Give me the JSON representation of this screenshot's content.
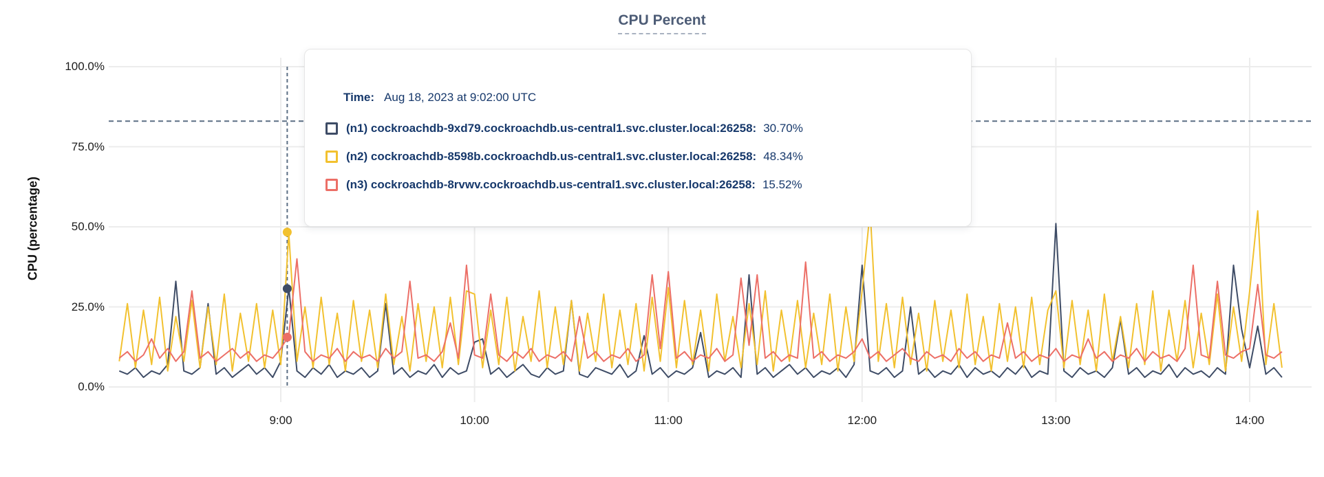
{
  "chart_data": {
    "type": "line",
    "title": "CPU Percent",
    "ylabel": "CPU (percentage)",
    "ylim": [
      0,
      100
    ],
    "grid": true,
    "y_ticks": [
      {
        "pct": 0,
        "label": "0.0%"
      },
      {
        "pct": 25,
        "label": "25.0%"
      },
      {
        "pct": 50,
        "label": "50.0%"
      },
      {
        "pct": 75,
        "label": "75.0%"
      },
      {
        "pct": 100,
        "label": "100.0%"
      }
    ],
    "x_ticks": [
      {
        "minutes": 540,
        "label": "9:00"
      },
      {
        "minutes": 600,
        "label": "10:00"
      },
      {
        "minutes": 660,
        "label": "11:00"
      },
      {
        "minutes": 720,
        "label": "12:00"
      },
      {
        "minutes": 780,
        "label": "13:00"
      },
      {
        "minutes": 840,
        "label": "14:00"
      }
    ],
    "x_start_minutes": 490,
    "sample_interval_minutes": 2.5,
    "series": [
      {
        "name": "(n1) cockroachdb-9xd79.cockroachdb.us-central1.svc.cluster.local:26258",
        "short": "n1",
        "color": "#3e4c66",
        "values": [
          5,
          4,
          6,
          3,
          5,
          4,
          7,
          33,
          5,
          4,
          6,
          26,
          4,
          6,
          3,
          5,
          7,
          4,
          6,
          3,
          8,
          31,
          5,
          3,
          6,
          4,
          7,
          3,
          5,
          4,
          6,
          3,
          5,
          26,
          4,
          6,
          3,
          5,
          4,
          7,
          3,
          6,
          4,
          5,
          14,
          15,
          4,
          6,
          3,
          5,
          7,
          4,
          3,
          6,
          4,
          5,
          27,
          4,
          3,
          6,
          5,
          4,
          7,
          3,
          5,
          16,
          4,
          6,
          3,
          5,
          4,
          6,
          17,
          3,
          5,
          4,
          6,
          3,
          35,
          4,
          6,
          3,
          5,
          7,
          4,
          6,
          3,
          5,
          4,
          6,
          3,
          7,
          38,
          5,
          4,
          6,
          3,
          5,
          25,
          4,
          6,
          3,
          5,
          4,
          7,
          3,
          6,
          4,
          5,
          3,
          6,
          4,
          7,
          3,
          5,
          4,
          51,
          5,
          3,
          6,
          4,
          5,
          3,
          6,
          21,
          4,
          6,
          3,
          5,
          4,
          7,
          3,
          6,
          4,
          5,
          3,
          6,
          4,
          38,
          18,
          6,
          19,
          4,
          6,
          3
        ]
      },
      {
        "name": "(n2) cockroachdb-8598b.cockroachdb.us-central1.svc.cluster.local:26258",
        "short": "n2",
        "color": "#f2c12f",
        "values": [
          8,
          26,
          6,
          24,
          7,
          28,
          5,
          22,
          8,
          27,
          6,
          25,
          7,
          29,
          5,
          23,
          8,
          26,
          6,
          24,
          7,
          48,
          8,
          25,
          6,
          28,
          7,
          23,
          5,
          27,
          8,
          24,
          6,
          29,
          7,
          22,
          5,
          26,
          8,
          25,
          6,
          28,
          7,
          30,
          29,
          6,
          24,
          7,
          28,
          5,
          22,
          8,
          30,
          6,
          25,
          7,
          27,
          5,
          23,
          8,
          29,
          6,
          24,
          7,
          26,
          5,
          28,
          8,
          31,
          6,
          27,
          7,
          24,
          5,
          29,
          8,
          22,
          6,
          26,
          7,
          30,
          5,
          24,
          8,
          27,
          6,
          23,
          7,
          29,
          5,
          25,
          8,
          30,
          55,
          8,
          26,
          6,
          28,
          7,
          23,
          5,
          27,
          8,
          24,
          6,
          29,
          7,
          22,
          5,
          26,
          8,
          25,
          6,
          28,
          7,
          24,
          30,
          6,
          27,
          7,
          24,
          5,
          29,
          8,
          22,
          6,
          26,
          7,
          30,
          5,
          24,
          8,
          27,
          6,
          23,
          7,
          29,
          5,
          25,
          8,
          30,
          55,
          7,
          26,
          6
        ]
      },
      {
        "name": "(n3) cockroachdb-8rvwv.cockroachdb.us-central1.svc.cluster.local:26258",
        "short": "n3",
        "color": "#ec6f67",
        "values": [
          9,
          11,
          8,
          10,
          15,
          9,
          12,
          8,
          11,
          30,
          9,
          11,
          8,
          10,
          12,
          9,
          11,
          8,
          10,
          9,
          12,
          16,
          40,
          11,
          8,
          10,
          9,
          12,
          8,
          11,
          9,
          10,
          8,
          12,
          9,
          11,
          33,
          9,
          10,
          8,
          11,
          20,
          9,
          38,
          10,
          9,
          29,
          10,
          8,
          11,
          9,
          12,
          8,
          10,
          9,
          11,
          8,
          22,
          9,
          11,
          8,
          10,
          9,
          12,
          8,
          10,
          35,
          12,
          36,
          9,
          11,
          8,
          10,
          9,
          12,
          8,
          10,
          34,
          13,
          35,
          9,
          11,
          8,
          10,
          9,
          39,
          9,
          11,
          8,
          10,
          9,
          11,
          15,
          9,
          11,
          8,
          10,
          12,
          9,
          8,
          11,
          9,
          10,
          8,
          12,
          9,
          11,
          8,
          10,
          9,
          20,
          9,
          11,
          8,
          10,
          9,
          12,
          8,
          10,
          9,
          15,
          9,
          11,
          8,
          10,
          9,
          12,
          8,
          11,
          9,
          10,
          8,
          12,
          38,
          10,
          9,
          33,
          10,
          9,
          11,
          12,
          32,
          10,
          9,
          11
        ]
      }
    ],
    "hover": {
      "time_minutes": 542,
      "time_label": "Aug 18, 2023 at 9:02:00 UTC",
      "values": [
        30.7,
        48.34,
        15.52
      ],
      "crosshair_pct": 83,
      "crosshair_color": "#5b6e84"
    }
  },
  "tooltip": {
    "time_label": "Time:",
    "time_value": "Aug 18, 2023 at 9:02:00 UTC",
    "rows": [
      {
        "label": "(n1) cockroachdb-9xd79.cockroachdb.us-central1.svc.cluster.local:26258:",
        "value": "30.70%",
        "color": "#3e4c66"
      },
      {
        "label": "(n2) cockroachdb-8598b.cockroachdb.us-central1.svc.cluster.local:26258:",
        "value": "48.34%",
        "color": "#f2c12f"
      },
      {
        "label": "(n3) cockroachdb-8rvwv.cockroachdb.us-central1.svc.cluster.local:26258:",
        "value": "15.52%",
        "color": "#ec6f67"
      }
    ]
  },
  "colors": {
    "gridline": "#ececec",
    "axis_text": "#1c1c1c",
    "title": "#4d5c76",
    "tooltip_text": "#16386b"
  }
}
